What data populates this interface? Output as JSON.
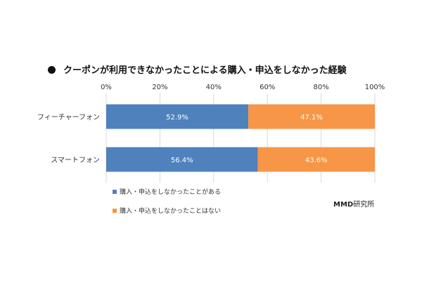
{
  "chart_data": {
    "type": "bar",
    "orientation": "horizontal",
    "stacked": true,
    "title": "クーポンが利用できなかったことによる購入・申込をしなかった経験",
    "categories": [
      "フィーチャーフォン",
      "スマートフォン"
    ],
    "series": [
      {
        "name": "購入・申込をしなかったことがある",
        "values": [
          52.9,
          56.4
        ],
        "labels": [
          "52.9%",
          "56.4%"
        ],
        "color": "#4f81bd"
      },
      {
        "name": "購入・申込をしなかったことはない",
        "values": [
          47.1,
          43.6
        ],
        "labels": [
          "47.1%",
          "43.6%"
        ],
        "color": "#f79646"
      }
    ],
    "xlim": [
      0,
      100
    ],
    "xticks": [
      "0%",
      "20%",
      "40%",
      "60%",
      "80%",
      "100%"
    ],
    "gridlines": true,
    "legend_position": "bottom-left"
  },
  "source": {
    "brand": "MMD",
    "suffix": "研究所"
  },
  "colors": {
    "gridline": "#d9d9d9",
    "label_text": "#ffffff"
  }
}
